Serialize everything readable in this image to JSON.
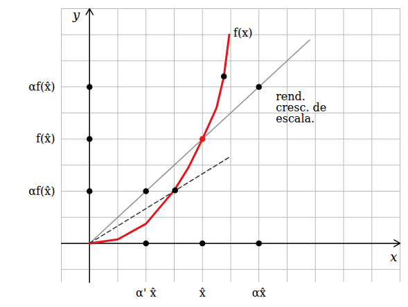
{
  "chart_data": {
    "type": "line",
    "x_label": "x",
    "y_label": "y",
    "xlim": [
      -1,
      11
    ],
    "ylim": [
      -1.5,
      9
    ],
    "xticks": [
      {
        "value": 2,
        "label": "α' x̂"
      },
      {
        "value": 4,
        "label": "x̂"
      },
      {
        "value": 6,
        "label": "αx̂"
      }
    ],
    "yticks": [
      {
        "value": 2,
        "label": "αf(x̂)"
      },
      {
        "value": 4,
        "label": "f(x̂)"
      },
      {
        "value": 6,
        "label": "αf(x̂)"
      }
    ],
    "grid": true,
    "series": [
      {
        "name": "f(x)",
        "color": "#e8141c",
        "x": [
          0,
          1,
          2,
          3,
          3.5,
          4,
          4.5,
          4.76,
          4.95
        ],
        "values": [
          0,
          0.15,
          0.75,
          2.03,
          2.9,
          4,
          5.2,
          6.4,
          8.0
        ]
      },
      {
        "color": "#8c8c8c",
        "x": [
          0,
          7.8
        ],
        "values": [
          0,
          7.8
        ]
      },
      {
        "color": "#333333",
        "line_style": "dashed",
        "x": [
          0,
          4.95
        ],
        "values": [
          0,
          3.3
        ]
      },
      {
        "type": "scatter",
        "marker": "dot",
        "color": "#000000",
        "x": [
          2,
          3.03,
          4.76,
          6,
          0,
          0,
          0,
          2,
          4,
          6
        ],
        "values": [
          2,
          2.03,
          6.4,
          6,
          2,
          4,
          6,
          0,
          0,
          0
        ]
      },
      {
        "type": "scatter",
        "marker": "dot",
        "color": "#e8141c",
        "x": [
          4
        ],
        "values": [
          4
        ]
      }
    ],
    "annotations": [
      {
        "text": "rend. cresc. de escala.",
        "x": 6.6,
        "y": 5.8
      }
    ]
  }
}
